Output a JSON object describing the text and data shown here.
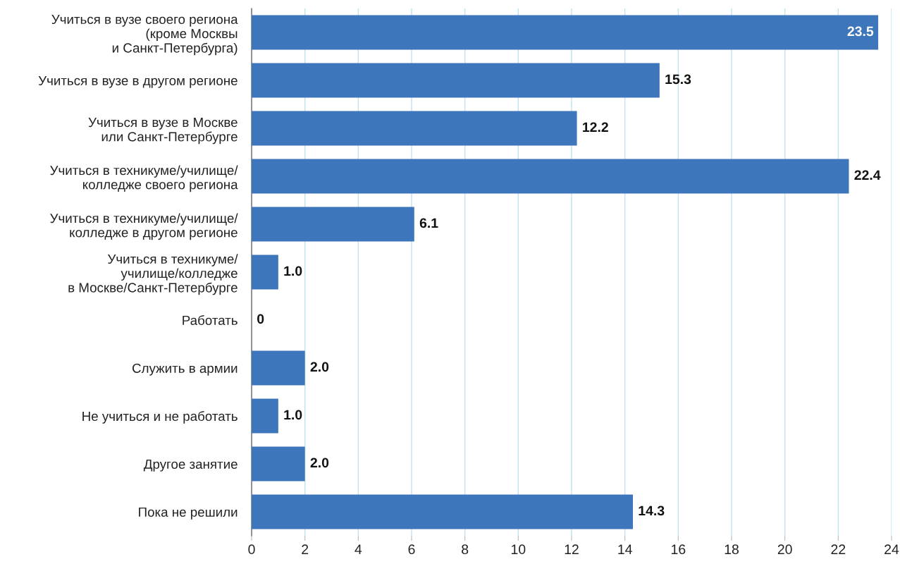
{
  "chart_data": {
    "type": "bar",
    "orientation": "horizontal",
    "categories": [
      "Учиться в вузе своего региона\n(кроме Москвы\nи Санкт-Петербурга)",
      "Учиться в вузе в другом регионе",
      "Учиться в вузе в Москве\nили Санкт-Петербурге",
      "Учиться в техникуме/училище/\nколледже своего региона",
      "Учиться в техникуме/училище/\nколледже в другом регионе",
      "Учиться в техникуме/\nучилище/колледже\nв Москве/Санкт-Петербурге",
      "Работать",
      "Служить в армии",
      "Не учиться и не работать",
      "Другое занятие",
      "Пока не решили"
    ],
    "values": [
      23.5,
      15.3,
      12.2,
      22.4,
      6.1,
      1.0,
      0,
      2.0,
      1.0,
      2.0,
      14.3
    ],
    "value_labels": [
      "23.5",
      "15.3",
      "12.2",
      "22.4",
      "6.1",
      "1.0",
      "0",
      "2.0",
      "1.0",
      "2.0",
      "14.3"
    ],
    "color": "#3d76bb",
    "xlim": [
      0,
      24
    ],
    "xticks": [
      0,
      2,
      4,
      6,
      8,
      10,
      12,
      14,
      16,
      18,
      20,
      22,
      24
    ],
    "grid": "x"
  }
}
